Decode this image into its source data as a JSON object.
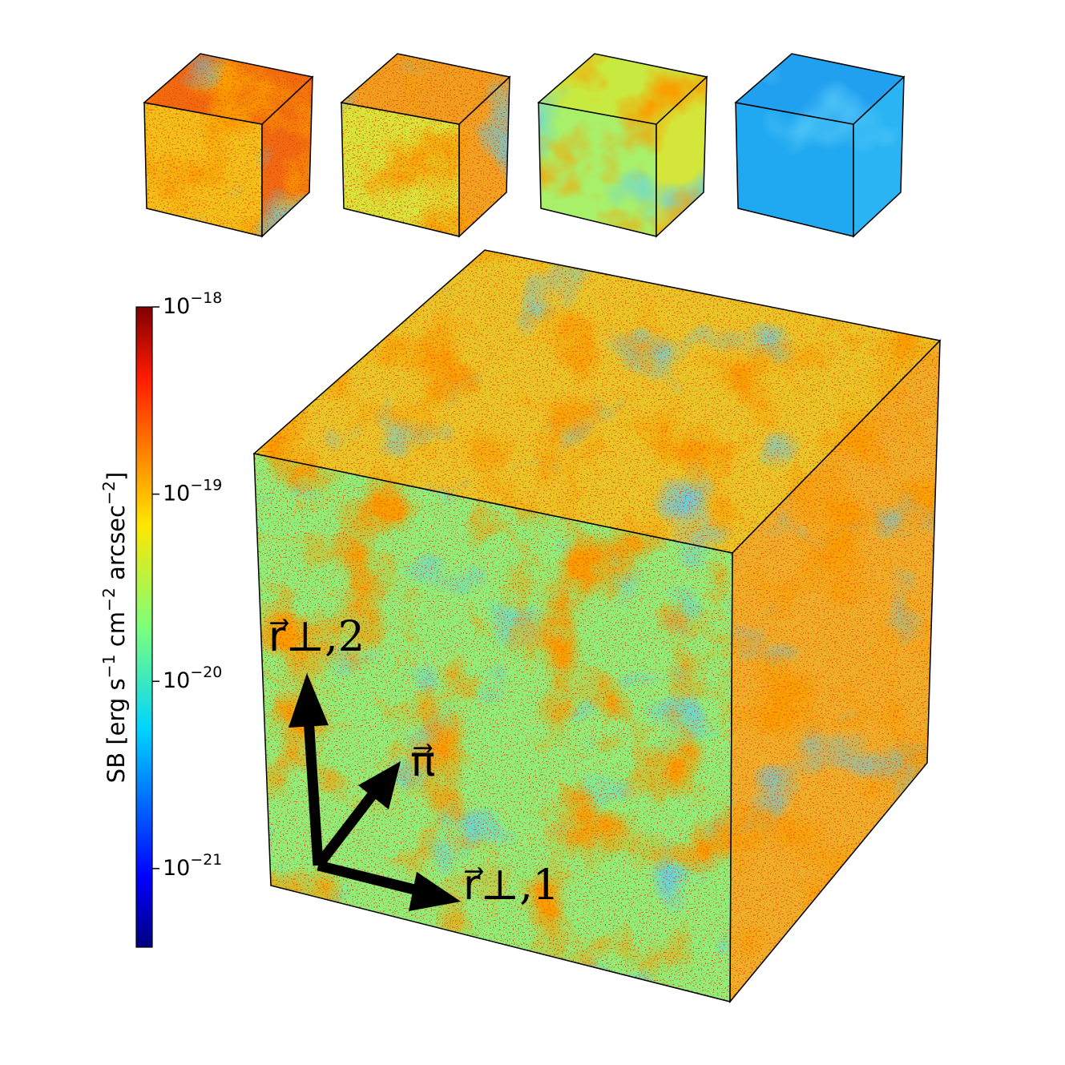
{
  "chart_data": {
    "type": "colorbar",
    "axis_label": "SB [erg s−1 cm−2 arcsec−2]",
    "log": true,
    "colormap": "jet",
    "ylim": [
      3.8e-22,
      1e-18
    ],
    "yticks": [
      {
        "value": 1e-18,
        "label": "10−18"
      },
      {
        "value": 1e-19,
        "label": "10−19"
      },
      {
        "value": 1e-20,
        "label": "10−20"
      },
      {
        "value": 1e-21,
        "label": "10−21"
      }
    ],
    "annotations": [
      "r⃗⊥,2",
      "π⃗",
      "r⃗⊥,1"
    ]
  }
}
